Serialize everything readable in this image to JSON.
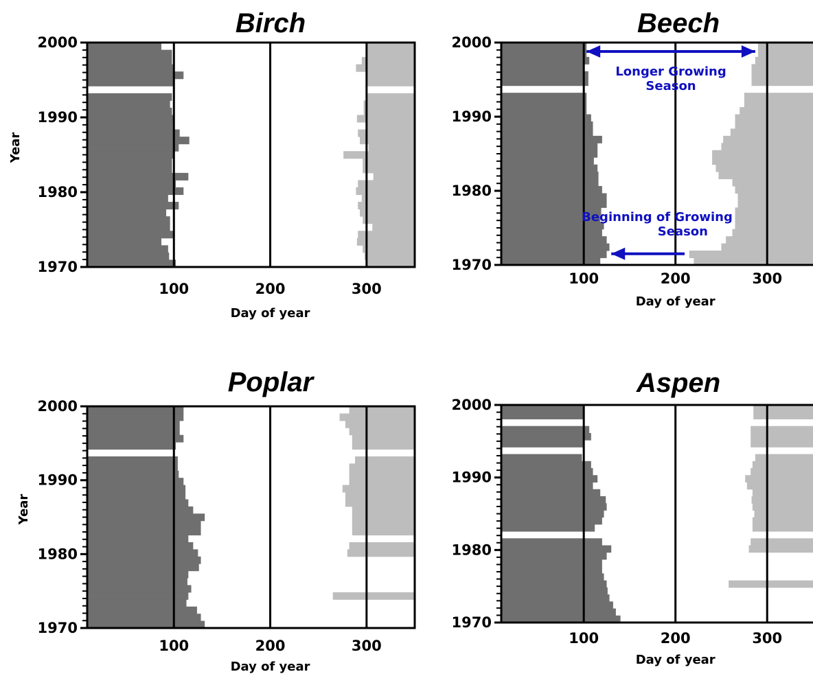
{
  "colors": {
    "leaf_out": "#6f6f6f",
    "leaf_fall": "#bdbdbd",
    "axis": "#000000",
    "annotation": "#1010c0"
  },
  "chart_data": [
    {
      "type": "bar",
      "title": "Birch",
      "xlabel": "Day of year",
      "ylabel": "Year",
      "xlim": [
        10,
        350
      ],
      "ylim": [
        1970,
        2000
      ],
      "xticks": [
        100,
        200,
        300
      ],
      "yticks": [
        1970,
        1980,
        1990,
        2000
      ],
      "vlines": [
        100,
        200,
        300
      ],
      "grid": false,
      "legend": "none",
      "years": [
        1970,
        1971,
        1972,
        1973,
        1974,
        1975,
        1976,
        1977,
        1978,
        1979,
        1980,
        1981,
        1982,
        1983,
        1984,
        1985,
        1986,
        1987,
        1988,
        1989,
        1990,
        1991,
        1992,
        1993,
        1994,
        1995,
        1996,
        1997,
        1998,
        1999,
        2000
      ],
      "spring_start": [
        102,
        95,
        94,
        87,
        100,
        96,
        96,
        92,
        105,
        94,
        110,
        102,
        115,
        98,
        98,
        100,
        105,
        116,
        106,
        99,
        100,
        98,
        96,
        98,
        null,
        100,
        110,
        99,
        98,
        98,
        87
      ],
      "autumn_end": [
        300,
        298,
        296,
        290,
        291,
        306,
        296,
        293,
        291,
        295,
        289,
        291,
        307,
        296,
        296,
        276,
        302,
        293,
        291,
        300,
        290,
        297,
        297,
        300,
        null,
        300,
        300,
        289,
        295,
        300,
        300
      ]
    },
    {
      "type": "bar",
      "title": "Beech",
      "xlabel": "Day of year",
      "xlim": [
        10,
        350
      ],
      "ylim": [
        1970,
        2000
      ],
      "xticks": [
        100,
        200,
        300
      ],
      "yticks": [
        1970,
        1980,
        1990,
        2000
      ],
      "vlines": [
        100,
        200,
        300
      ],
      "grid": false,
      "legend": "none",
      "years": [
        1970,
        1971,
        1972,
        1973,
        1974,
        1975,
        1976,
        1977,
        1978,
        1979,
        1980,
        1981,
        1982,
        1983,
        1984,
        1985,
        1986,
        1987,
        1988,
        1989,
        1990,
        1991,
        1992,
        1993,
        1994,
        1995,
        1996,
        1997,
        1998,
        1999,
        2000
      ],
      "spring_start": [
        118,
        125,
        128,
        125,
        120,
        122,
        118,
        119,
        125,
        125,
        120,
        116,
        116,
        115,
        111,
        115,
        115,
        120,
        110,
        110,
        108,
        103,
        103,
        103,
        null,
        105,
        105,
        100,
        106,
        103,
        103
      ],
      "autumn_end": [
        220,
        215,
        250,
        255,
        262,
        265,
        265,
        265,
        268,
        268,
        265,
        262,
        247,
        244,
        240,
        240,
        250,
        252,
        260,
        265,
        265,
        270,
        275,
        275,
        null,
        283,
        283,
        283,
        287,
        290,
        290
      ]
    },
    {
      "type": "bar",
      "title": "Poplar",
      "xlabel": "Day of year",
      "ylabel": "Year",
      "xlim": [
        10,
        350
      ],
      "ylim": [
        1970,
        2000
      ],
      "xticks": [
        100,
        200,
        300
      ],
      "yticks": [
        1970,
        1980,
        1990,
        2000
      ],
      "vlines": [
        100,
        200,
        300
      ],
      "grid": false,
      "legend": "none",
      "years": [
        1970,
        1971,
        1972,
        1973,
        1974,
        1975,
        1976,
        1977,
        1978,
        1979,
        1980,
        1981,
        1982,
        1983,
        1984,
        1985,
        1986,
        1987,
        1988,
        1989,
        1990,
        1991,
        1992,
        1993,
        1994,
        1995,
        1996,
        1997,
        1998,
        1999,
        2000
      ],
      "spring_start": [
        132,
        128,
        124,
        113,
        115,
        118,
        114,
        115,
        126,
        128,
        125,
        120,
        115,
        128,
        128,
        132,
        120,
        115,
        112,
        112,
        110,
        105,
        104,
        104,
        null,
        102,
        110,
        106,
        106,
        110,
        110
      ],
      "autumn_end": [
        350,
        350,
        350,
        350,
        265,
        350,
        350,
        350,
        350,
        350,
        280,
        282,
        350,
        285,
        285,
        285,
        285,
        278,
        278,
        275,
        282,
        282,
        282,
        288,
        null,
        285,
        285,
        282,
        278,
        272,
        282
      ]
    },
    {
      "type": "bar",
      "title": "Aspen",
      "xlabel": "Day of year",
      "xlim": [
        10,
        350
      ],
      "ylim": [
        1970,
        2000
      ],
      "xticks": [
        100,
        200,
        300
      ],
      "yticks": [
        1970,
        1980,
        1990,
        2000
      ],
      "vlines": [
        100,
        200,
        300
      ],
      "grid": false,
      "legend": "none",
      "years": [
        1970,
        1971,
        1972,
        1973,
        1974,
        1975,
        1976,
        1977,
        1978,
        1979,
        1980,
        1981,
        1982,
        1983,
        1984,
        1985,
        1986,
        1987,
        1988,
        1989,
        1990,
        1991,
        1992,
        1993,
        1994,
        1995,
        1996,
        1997,
        1998,
        1999,
        2000
      ],
      "spring_start": [
        140,
        135,
        132,
        128,
        126,
        125,
        122,
        120,
        120,
        125,
        130,
        120,
        null,
        112,
        120,
        122,
        125,
        124,
        118,
        110,
        115,
        110,
        108,
        98,
        null,
        100,
        108,
        106,
        null,
        100,
        100
      ],
      "autumn_end": [
        355,
        355,
        355,
        355,
        355,
        258,
        355,
        355,
        355,
        355,
        280,
        282,
        null,
        284,
        284,
        286,
        284,
        283,
        284,
        278,
        276,
        282,
        284,
        287,
        null,
        282,
        282,
        282,
        null,
        285,
        285
      ]
    }
  ],
  "annotations": [
    {
      "chart": "Beech",
      "text_lines": [
        "Longer Growing",
        "Season"
      ],
      "arrow": "double",
      "from_day": 103,
      "to_day": 287,
      "year": 1998.8
    },
    {
      "chart": "Beech",
      "text_lines": [
        "Beginning of Growing",
        "Season"
      ],
      "arrow": "left",
      "from_day": 210,
      "to_day": 130,
      "year": 1971.5
    }
  ]
}
